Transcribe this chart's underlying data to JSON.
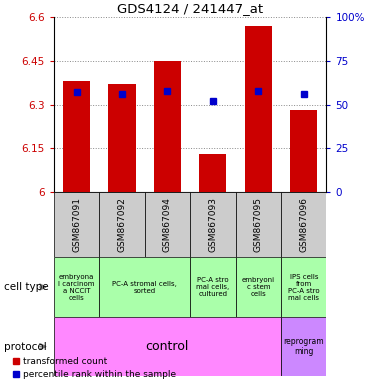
{
  "title": "GDS4124 / 241447_at",
  "samples": [
    "GSM867091",
    "GSM867092",
    "GSM867094",
    "GSM867093",
    "GSM867095",
    "GSM867096"
  ],
  "bar_values": [
    6.38,
    6.37,
    6.45,
    6.13,
    6.57,
    6.28
  ],
  "percentile_values": [
    57,
    56,
    58,
    52,
    58,
    56
  ],
  "ylim_left": [
    6.0,
    6.6
  ],
  "ylim_right": [
    0,
    100
  ],
  "yticks_left": [
    6.0,
    6.15,
    6.3,
    6.45,
    6.6
  ],
  "yticks_right": [
    0,
    25,
    50,
    75,
    100
  ],
  "ytick_labels_left": [
    "6",
    "6.15",
    "6.3",
    "6.45",
    "6.6"
  ],
  "ytick_labels_right": [
    "0",
    "25",
    "50",
    "75",
    "100%"
  ],
  "bar_color": "#cc0000",
  "dot_color": "#0000cc",
  "bar_bottom": 6.0,
  "cell_types": [
    {
      "text": "embryona\nl carcinom\na NCCIT\ncells",
      "color": "#aaffaa",
      "span": [
        0,
        1
      ]
    },
    {
      "text": "PC-A stromal cells,\nsorted",
      "color": "#aaffaa",
      "span": [
        1,
        3
      ]
    },
    {
      "text": "PC-A stro\nmal cells,\ncultured",
      "color": "#aaffaa",
      "span": [
        3,
        4
      ]
    },
    {
      "text": "embryoni\nc stem\ncells",
      "color": "#aaffaa",
      "span": [
        4,
        5
      ]
    },
    {
      "text": "IPS cells\nfrom\nPC-A stro\nmal cells",
      "color": "#aaffaa",
      "span": [
        5,
        6
      ]
    }
  ],
  "protocol_control": {
    "text": "control",
    "color": "#ff88ff",
    "span": [
      0,
      5
    ]
  },
  "protocol_reprogramming": {
    "text": "reprogram\nming",
    "color": "#cc88ff",
    "span": [
      5,
      6
    ]
  },
  "grid_color": "#888888",
  "sample_box_color": "#cccccc",
  "legend_labels": [
    "transformed count",
    "percentile rank within the sample"
  ]
}
